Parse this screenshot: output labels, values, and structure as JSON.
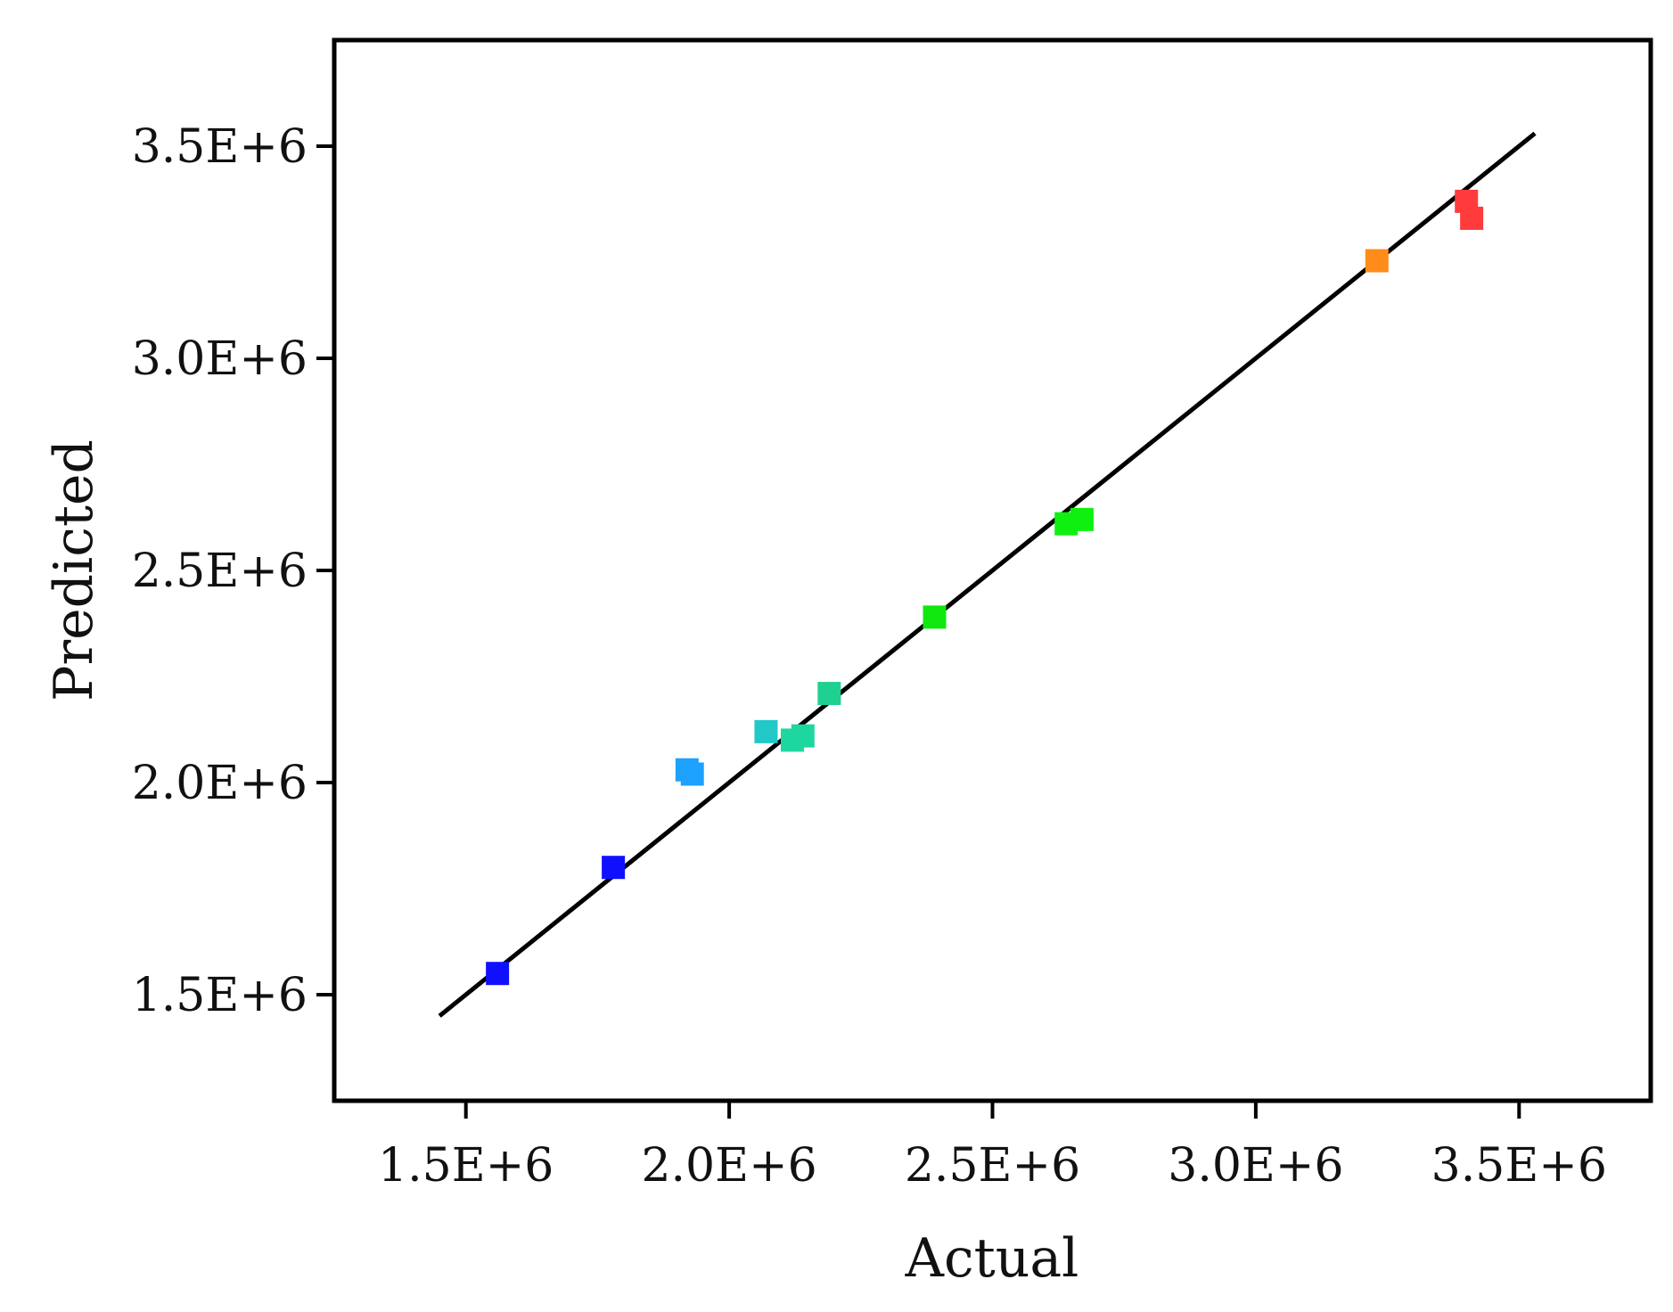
{
  "chart_data": {
    "type": "scatter",
    "xlabel": "Actual",
    "ylabel": "Predicted",
    "xlim": [
      1250000,
      3750000
    ],
    "ylim": [
      1250000,
      3750000
    ],
    "xticks": [
      1500000,
      2000000,
      2500000,
      3000000,
      3500000
    ],
    "yticks": [
      1500000,
      2000000,
      2500000,
      3000000,
      3500000
    ],
    "xtick_labels": [
      "1.5E+6",
      "2.0E+6",
      "2.5E+6",
      "3.0E+6",
      "3.5E+6"
    ],
    "ytick_labels": [
      "1.5E+6",
      "2.0E+6",
      "2.5E+6",
      "3.0E+6",
      "3.5E+6"
    ],
    "grid": false,
    "legend": "none",
    "reference_line": {
      "type": "y=x",
      "x": [
        1450000,
        3530000
      ],
      "y": [
        1450000,
        3530000
      ],
      "color": "#000000"
    },
    "points": [
      {
        "x": 1560000,
        "y": 1550000,
        "color": "#1010ff"
      },
      {
        "x": 1780000,
        "y": 1800000,
        "color": "#1010ff"
      },
      {
        "x": 1920000,
        "y": 2030000,
        "color": "#1ea0ff"
      },
      {
        "x": 1930000,
        "y": 2020000,
        "color": "#1ea0ff"
      },
      {
        "x": 2070000,
        "y": 2120000,
        "color": "#20c8c8"
      },
      {
        "x": 2140000,
        "y": 2110000,
        "color": "#1ed6a0"
      },
      {
        "x": 2120000,
        "y": 2100000,
        "color": "#1ed6a0"
      },
      {
        "x": 2190000,
        "y": 2210000,
        "color": "#20d090"
      },
      {
        "x": 2390000,
        "y": 2390000,
        "color": "#10e810"
      },
      {
        "x": 2640000,
        "y": 2610000,
        "color": "#10f010"
      },
      {
        "x": 2670000,
        "y": 2620000,
        "color": "#10f010"
      },
      {
        "x": 3230000,
        "y": 3230000,
        "color": "#ff8c1a"
      },
      {
        "x": 3400000,
        "y": 3370000,
        "color": "#ff3b3b"
      },
      {
        "x": 3410000,
        "y": 3330000,
        "color": "#ff3b3b"
      }
    ]
  }
}
